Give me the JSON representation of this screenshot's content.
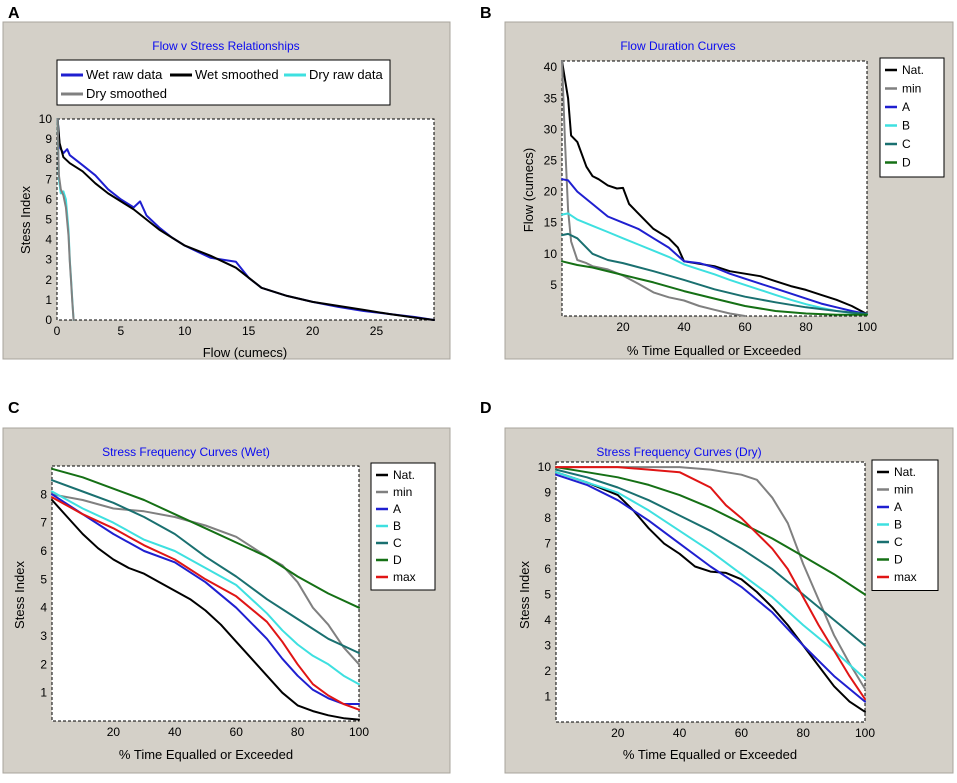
{
  "colors": {
    "panel_bg": "#d4d0c8",
    "plot_bg": "#ffffff",
    "title": "#0a0af0"
  },
  "chart_data": [
    {
      "panel": "A",
      "type": "line",
      "title": "Flow v Stress Relationships",
      "xlabel": "Flow (cumecs)",
      "ylabel": "Stess Index",
      "xlim": [
        0,
        29.5
      ],
      "ylim": [
        0,
        10
      ],
      "xticks": [
        0,
        5,
        10,
        15,
        20,
        25
      ],
      "yticks": [
        0,
        1,
        2,
        3,
        4,
        5,
        6,
        7,
        8,
        9,
        10
      ],
      "legend_position": "top",
      "series": [
        {
          "name": "Wet raw data",
          "color": "#1f1fd0",
          "x": [
            0.05,
            0.2,
            0.5,
            0.8,
            1.0,
            2,
            3,
            4,
            5,
            6,
            6.5,
            7,
            8,
            9,
            10,
            11,
            12,
            13,
            14,
            14.5,
            15,
            16,
            18,
            20,
            22,
            24,
            26,
            28,
            29.5
          ],
          "y": [
            10,
            8.6,
            8.3,
            8.5,
            8.2,
            7.7,
            7.2,
            6.5,
            6.0,
            5.6,
            5.9,
            5.2,
            4.6,
            4.1,
            3.7,
            3.4,
            3.1,
            3.0,
            2.9,
            2.5,
            2.1,
            1.6,
            1.2,
            0.9,
            0.65,
            0.45,
            0.3,
            0.15,
            0.0
          ]
        },
        {
          "name": "Wet smoothed",
          "color": "#000000",
          "x": [
            0.05,
            0.2,
            0.5,
            1,
            2,
            3,
            4,
            5,
            6,
            8,
            10,
            12,
            14,
            16,
            18,
            20,
            22,
            24,
            26,
            28,
            29.5
          ],
          "y": [
            10,
            8.8,
            8.1,
            7.8,
            7.4,
            6.8,
            6.3,
            5.9,
            5.5,
            4.5,
            3.7,
            3.2,
            2.6,
            1.6,
            1.2,
            0.9,
            0.7,
            0.5,
            0.3,
            0.12,
            0.0
          ]
        },
        {
          "name": "Dry raw data",
          "color": "#3ee0e0",
          "x": [
            0.05,
            0.15,
            0.3,
            0.5,
            0.7,
            0.9,
            1.0,
            1.1,
            1.2,
            1.3
          ],
          "y": [
            10,
            7.0,
            6.3,
            6.4,
            6.0,
            4.5,
            3.0,
            2.0,
            1.0,
            0.0
          ]
        },
        {
          "name": "Dry smoothed",
          "color": "#808080",
          "x": [
            0.05,
            0.15,
            0.3,
            0.5,
            0.7,
            0.9,
            1.0,
            1.1,
            1.2,
            1.3
          ],
          "y": [
            10,
            7.2,
            6.5,
            6.2,
            5.6,
            4.2,
            2.9,
            1.9,
            0.9,
            0.0
          ]
        }
      ]
    },
    {
      "panel": "B",
      "type": "line",
      "title": "Flow Duration Curves",
      "xlabel": "% Time Equalled or Exceeded",
      "ylabel": "Flow (cumecs)",
      "xlim": [
        0,
        100
      ],
      "ylim": [
        0,
        41
      ],
      "xticks": [
        20,
        40,
        60,
        80,
        100
      ],
      "yticks": [
        5,
        10,
        15,
        20,
        25,
        30,
        35,
        40
      ],
      "legend_position": "right",
      "series": [
        {
          "name": "Nat.",
          "color": "#000000",
          "x": [
            0,
            1,
            2,
            3,
            5,
            8,
            10,
            12,
            15,
            18,
            20,
            22,
            25,
            30,
            35,
            38,
            40,
            45,
            50,
            55,
            60,
            65,
            70,
            75,
            80,
            85,
            90,
            95,
            100
          ],
          "y": [
            41,
            38,
            35,
            29,
            28,
            24,
            22.5,
            22,
            21,
            20.5,
            20.6,
            18,
            16.5,
            14,
            12.5,
            11,
            8.8,
            8.4,
            8.0,
            7.2,
            6.8,
            6.4,
            5.6,
            4.8,
            4.2,
            3.4,
            2.6,
            1.6,
            0.3
          ]
        },
        {
          "name": "min",
          "color": "#808080",
          "x": [
            0,
            1,
            2,
            3,
            5,
            8,
            10,
            15,
            20,
            25,
            30,
            35,
            40,
            45,
            50,
            55,
            60
          ],
          "y": [
            41,
            28,
            17,
            12,
            9,
            8.5,
            8,
            7.5,
            6.5,
            5.2,
            3.8,
            3.0,
            2.5,
            1.6,
            1.0,
            0.4,
            0.0
          ]
        },
        {
          "name": "A",
          "color": "#1f1fd0",
          "x": [
            0,
            2,
            5,
            10,
            15,
            20,
            25,
            30,
            35,
            40,
            45,
            50,
            55,
            60,
            65,
            70,
            75,
            80,
            85,
            90,
            95,
            100
          ],
          "y": [
            22,
            21.8,
            20,
            18,
            16,
            15,
            14,
            12.5,
            11,
            8.8,
            8.5,
            7.8,
            6.8,
            6.0,
            5.2,
            4.4,
            3.6,
            2.8,
            2.0,
            1.4,
            0.8,
            0.3
          ]
        },
        {
          "name": "B",
          "color": "#3ee0e0",
          "x": [
            0,
            2,
            5,
            10,
            15,
            20,
            25,
            30,
            35,
            40,
            45,
            50,
            55,
            60,
            65,
            70,
            75,
            80,
            85,
            90,
            95,
            100
          ],
          "y": [
            16.3,
            16.5,
            15.5,
            14.5,
            13.5,
            12.5,
            11.5,
            10.5,
            9.5,
            8.3,
            7.5,
            6.7,
            5.8,
            5.0,
            4.2,
            3.4,
            2.6,
            1.9,
            1.3,
            0.8,
            0.5,
            0.3
          ]
        },
        {
          "name": "C",
          "color": "#1a7070",
          "x": [
            0,
            2,
            5,
            8,
            10,
            15,
            20,
            30,
            40,
            50,
            60,
            70,
            80,
            90,
            100
          ],
          "y": [
            13,
            13.2,
            12.5,
            11,
            10,
            9,
            8.5,
            7.2,
            5.8,
            4.3,
            3.1,
            2.2,
            1.4,
            0.8,
            0.3
          ]
        },
        {
          "name": "D",
          "color": "#157015",
          "x": [
            0,
            5,
            10,
            20,
            30,
            40,
            50,
            60,
            70,
            80,
            90,
            100
          ],
          "y": [
            8.8,
            8.2,
            7.8,
            6.6,
            5.4,
            4.0,
            2.8,
            1.6,
            0.8,
            0.4,
            0.2,
            0.2
          ]
        }
      ]
    },
    {
      "panel": "C",
      "type": "line",
      "title": "Stress Frequency Curves (Wet)",
      "xlabel": "% Time Equalled or Exceeded",
      "ylabel": "Stess Index",
      "xlim": [
        0,
        100
      ],
      "ylim": [
        0,
        9
      ],
      "xticks": [
        20,
        40,
        60,
        80,
        100
      ],
      "yticks": [
        1,
        2,
        3,
        4,
        5,
        6,
        7,
        8
      ],
      "legend_position": "right",
      "series": [
        {
          "name": "Nat.",
          "color": "#000000",
          "x": [
            0,
            5,
            10,
            15,
            20,
            25,
            30,
            35,
            40,
            45,
            50,
            55,
            60,
            65,
            70,
            75,
            80,
            85,
            90,
            95,
            100
          ],
          "y": [
            7.8,
            7.2,
            6.6,
            6.1,
            5.7,
            5.4,
            5.2,
            4.9,
            4.6,
            4.3,
            3.9,
            3.4,
            2.8,
            2.2,
            1.6,
            1.0,
            0.55,
            0.35,
            0.2,
            0.1,
            0.05
          ]
        },
        {
          "name": "min",
          "color": "#808080",
          "x": [
            0,
            10,
            20,
            30,
            40,
            50,
            60,
            70,
            75,
            80,
            85,
            90,
            95,
            100
          ],
          "y": [
            8.0,
            7.8,
            7.5,
            7.4,
            7.2,
            6.9,
            6.5,
            5.8,
            5.5,
            4.9,
            4.0,
            3.4,
            2.6,
            2.0
          ]
        },
        {
          "name": "A",
          "color": "#1f1fd0",
          "x": [
            0,
            10,
            20,
            30,
            40,
            50,
            60,
            70,
            75,
            80,
            85,
            90,
            95,
            100
          ],
          "y": [
            8.0,
            7.3,
            6.6,
            6.0,
            5.6,
            4.9,
            4.0,
            2.9,
            2.2,
            1.6,
            1.1,
            0.8,
            0.6,
            0.6
          ]
        },
        {
          "name": "B",
          "color": "#3ee0e0",
          "x": [
            0,
            10,
            20,
            30,
            40,
            50,
            60,
            70,
            75,
            80,
            85,
            90,
            95,
            100
          ],
          "y": [
            8.1,
            7.5,
            7.0,
            6.4,
            6.0,
            5.4,
            4.8,
            3.8,
            3.2,
            2.7,
            2.3,
            2.0,
            1.6,
            1.3
          ]
        },
        {
          "name": "C",
          "color": "#1a7070",
          "x": [
            0,
            10,
            20,
            30,
            40,
            50,
            60,
            70,
            80,
            90,
            100
          ],
          "y": [
            8.5,
            8.1,
            7.7,
            7.2,
            6.6,
            5.8,
            5.1,
            4.3,
            3.6,
            2.9,
            2.4
          ]
        },
        {
          "name": "D",
          "color": "#157015",
          "x": [
            0,
            10,
            20,
            30,
            40,
            50,
            60,
            70,
            80,
            90,
            100
          ],
          "y": [
            8.9,
            8.6,
            8.2,
            7.8,
            7.3,
            6.8,
            6.3,
            5.8,
            5.1,
            4.5,
            4.0
          ]
        },
        {
          "name": "max",
          "color": "#e01515",
          "x": [
            0,
            10,
            20,
            30,
            40,
            50,
            60,
            70,
            75,
            80,
            85,
            90,
            95,
            100
          ],
          "y": [
            7.9,
            7.3,
            6.8,
            6.2,
            5.7,
            5.0,
            4.4,
            3.5,
            2.8,
            2.0,
            1.3,
            0.9,
            0.6,
            0.4
          ]
        }
      ]
    },
    {
      "panel": "D",
      "type": "line",
      "title": "Stress Frequency Curves (Dry)",
      "xlabel": "% Time Equalled or Exceeded",
      "ylabel": "Stess Index",
      "xlim": [
        0,
        100
      ],
      "ylim": [
        0,
        10.2
      ],
      "xticks": [
        20,
        40,
        60,
        80,
        100
      ],
      "yticks": [
        1,
        2,
        3,
        4,
        5,
        6,
        7,
        8,
        9,
        10
      ],
      "legend_position": "right",
      "series": [
        {
          "name": "Nat.",
          "color": "#000000",
          "x": [
            0,
            10,
            20,
            25,
            30,
            35,
            40,
            45,
            50,
            55,
            60,
            65,
            70,
            75,
            80,
            85,
            90,
            95,
            100
          ],
          "y": [
            9.8,
            9.4,
            8.9,
            8.3,
            7.6,
            7.0,
            6.6,
            6.1,
            5.9,
            5.85,
            5.6,
            5.1,
            4.5,
            3.8,
            3.0,
            2.2,
            1.4,
            0.8,
            0.4
          ]
        },
        {
          "name": "min",
          "color": "#808080",
          "x": [
            0,
            10,
            20,
            30,
            40,
            50,
            55,
            60,
            65,
            70,
            75,
            80,
            85,
            90,
            95,
            100
          ],
          "y": [
            10,
            10,
            10,
            10,
            10,
            9.9,
            9.8,
            9.7,
            9.5,
            8.8,
            7.8,
            6.2,
            4.8,
            3.4,
            2.3,
            1.3
          ]
        },
        {
          "name": "A",
          "color": "#1f1fd0",
          "x": [
            0,
            10,
            20,
            30,
            40,
            50,
            60,
            70,
            80,
            90,
            100
          ],
          "y": [
            9.7,
            9.3,
            8.7,
            7.9,
            7.0,
            6.1,
            5.3,
            4.3,
            3.0,
            1.8,
            0.8
          ]
        },
        {
          "name": "B",
          "color": "#3ee0e0",
          "x": [
            0,
            10,
            20,
            30,
            40,
            50,
            60,
            70,
            80,
            90,
            100
          ],
          "y": [
            9.8,
            9.4,
            9.0,
            8.3,
            7.5,
            6.7,
            5.8,
            4.9,
            3.8,
            2.8,
            1.7
          ]
        },
        {
          "name": "C",
          "color": "#1a7070",
          "x": [
            0,
            10,
            20,
            30,
            40,
            50,
            60,
            70,
            80,
            90,
            100
          ],
          "y": [
            9.9,
            9.6,
            9.2,
            8.7,
            8.1,
            7.5,
            6.8,
            6.0,
            5.0,
            4.0,
            3.0
          ]
        },
        {
          "name": "D",
          "color": "#157015",
          "x": [
            0,
            10,
            20,
            30,
            40,
            50,
            60,
            70,
            80,
            90,
            100
          ],
          "y": [
            10,
            9.8,
            9.6,
            9.3,
            8.9,
            8.4,
            7.8,
            7.2,
            6.5,
            5.8,
            5.0
          ]
        },
        {
          "name": "max",
          "color": "#e01515",
          "x": [
            0,
            10,
            20,
            30,
            40,
            45,
            50,
            55,
            60,
            65,
            70,
            75,
            80,
            85,
            90,
            95,
            100
          ],
          "y": [
            10,
            10,
            10,
            9.9,
            9.8,
            9.5,
            9.2,
            8.5,
            8.0,
            7.4,
            6.8,
            6.0,
            4.9,
            3.8,
            2.8,
            1.8,
            0.9
          ]
        }
      ]
    }
  ]
}
